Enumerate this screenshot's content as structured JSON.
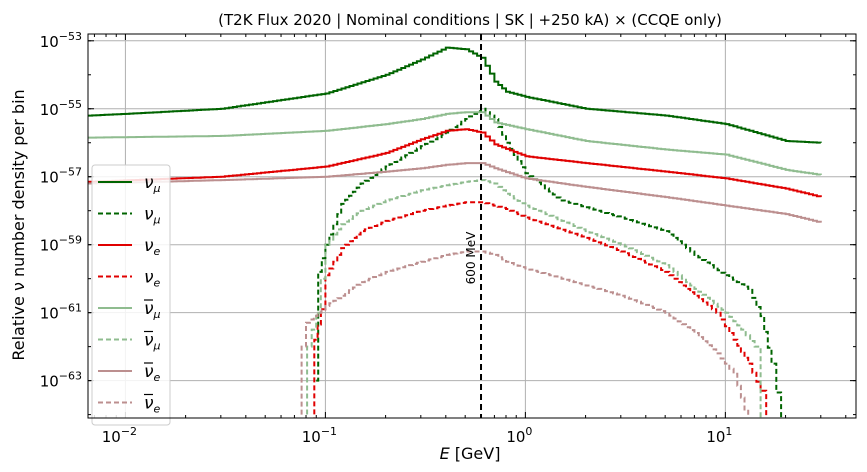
{
  "chart_data": {
    "type": "line",
    "title": "(T2K Flux 2020 | Nominal conditions | SK | +250 kA)      ×      (CCQE only)",
    "xlabel": "E [GeV]",
    "ylabel": "Relative ν number density per bin",
    "xscale": "log",
    "yscale": "log",
    "xlim": [
      0.0065,
      45
    ],
    "ylim_exp": [
      -64.1,
      -52.8
    ],
    "grid": true,
    "legend_position": "center-left",
    "x_ticks": [
      {
        "value": 0.01,
        "base": "10",
        "exp": "−2"
      },
      {
        "value": 0.1,
        "base": "10",
        "exp": "−1"
      },
      {
        "value": 1,
        "base": "10",
        "exp": "0"
      },
      {
        "value": 10,
        "base": "10",
        "exp": "1"
      }
    ],
    "y_ticks": [
      {
        "exp_value": -53,
        "base": "10",
        "exp": "−53"
      },
      {
        "exp_value": -55,
        "base": "10",
        "exp": "−55"
      },
      {
        "exp_value": -57,
        "base": "10",
        "exp": "−57"
      },
      {
        "exp_value": -59,
        "base": "10",
        "exp": "−59"
      },
      {
        "exp_value": -61,
        "base": "10",
        "exp": "−61"
      },
      {
        "exp_value": -63,
        "base": "10",
        "exp": "−63"
      }
    ],
    "annotation": {
      "text": "600 MeV",
      "x": 0.6
    },
    "series": [
      {
        "key": "numu_flux",
        "label": "ν",
        "sub": "μ",
        "bar": false,
        "color": "#006400",
        "dashed": false,
        "log10_points": [
          [
            0.0065,
            -55.2
          ],
          [
            0.01,
            -55.15
          ],
          [
            0.03,
            -55.0
          ],
          [
            0.1,
            -54.55
          ],
          [
            0.2,
            -54.0
          ],
          [
            0.3,
            -53.55
          ],
          [
            0.4,
            -53.2
          ],
          [
            0.5,
            -53.25
          ],
          [
            0.6,
            -53.5
          ],
          [
            0.7,
            -54.2
          ],
          [
            0.8,
            -54.5
          ],
          [
            1,
            -54.65
          ],
          [
            2,
            -55.0
          ],
          [
            5,
            -55.2
          ],
          [
            10,
            -55.45
          ],
          [
            20,
            -55.95
          ],
          [
            30,
            -56.0
          ]
        ]
      },
      {
        "key": "numu_ccqe",
        "label": "ν",
        "sub": "μ",
        "bar": false,
        "color": "#006400",
        "dashed": true,
        "log10_points": [
          [
            0.09,
            -63.0
          ],
          [
            0.092,
            -59.8
          ],
          [
            0.1,
            -59.0
          ],
          [
            0.12,
            -57.8
          ],
          [
            0.15,
            -57.2
          ],
          [
            0.2,
            -56.7
          ],
          [
            0.3,
            -56.1
          ],
          [
            0.4,
            -55.7
          ],
          [
            0.5,
            -55.3
          ],
          [
            0.6,
            -55.0
          ],
          [
            0.7,
            -55.3
          ],
          [
            0.8,
            -56.0
          ],
          [
            1,
            -56.9
          ],
          [
            1.5,
            -57.7
          ],
          [
            2,
            -57.9
          ],
          [
            3,
            -58.2
          ],
          [
            5,
            -58.6
          ],
          [
            7,
            -59.3
          ],
          [
            10,
            -59.9
          ],
          [
            13,
            -60.3
          ],
          [
            15,
            -61.1
          ],
          [
            17,
            -62.5
          ],
          [
            19,
            -64.2
          ]
        ]
      },
      {
        "key": "nue_flux",
        "label": "ν",
        "sub": "e",
        "bar": false,
        "color": "#e00000",
        "dashed": false,
        "log10_points": [
          [
            0.0065,
            -57.15
          ],
          [
            0.03,
            -57.0
          ],
          [
            0.1,
            -56.7
          ],
          [
            0.2,
            -56.3
          ],
          [
            0.3,
            -55.9
          ],
          [
            0.4,
            -55.65
          ],
          [
            0.5,
            -55.6
          ],
          [
            0.6,
            -55.7
          ],
          [
            0.7,
            -56.05
          ],
          [
            1,
            -56.4
          ],
          [
            2,
            -56.6
          ],
          [
            5,
            -56.85
          ],
          [
            10,
            -57.05
          ],
          [
            20,
            -57.35
          ],
          [
            30,
            -57.6
          ]
        ]
      },
      {
        "key": "nue_ccqe",
        "label": "ν",
        "sub": "e",
        "bar": false,
        "color": "#e00000",
        "dashed": true,
        "log10_points": [
          [
            0.087,
            -64.2
          ],
          [
            0.088,
            -61.8
          ],
          [
            0.095,
            -60.9
          ],
          [
            0.1,
            -59.9
          ],
          [
            0.12,
            -59.1
          ],
          [
            0.15,
            -58.6
          ],
          [
            0.2,
            -58.3
          ],
          [
            0.3,
            -58.0
          ],
          [
            0.4,
            -57.85
          ],
          [
            0.5,
            -57.75
          ],
          [
            0.6,
            -57.75
          ],
          [
            0.8,
            -57.95
          ],
          [
            1,
            -58.2
          ],
          [
            2,
            -58.8
          ],
          [
            3,
            -59.2
          ],
          [
            5,
            -59.8
          ],
          [
            7,
            -60.5
          ],
          [
            9,
            -61.0
          ],
          [
            11,
            -61.8
          ],
          [
            13,
            -62.5
          ],
          [
            15,
            -63.3
          ],
          [
            16,
            -64.2
          ]
        ]
      },
      {
        "key": "numubar_flux",
        "label": "ν",
        "sub": "μ",
        "bar": true,
        "color": "#8fbc8f",
        "dashed": false,
        "log10_points": [
          [
            0.0065,
            -55.85
          ],
          [
            0.03,
            -55.8
          ],
          [
            0.1,
            -55.65
          ],
          [
            0.2,
            -55.45
          ],
          [
            0.3,
            -55.3
          ],
          [
            0.4,
            -55.15
          ],
          [
            0.5,
            -55.1
          ],
          [
            0.6,
            -55.1
          ],
          [
            0.7,
            -55.4
          ],
          [
            1,
            -55.6
          ],
          [
            2,
            -55.95
          ],
          [
            5,
            -56.2
          ],
          [
            10,
            -56.35
          ],
          [
            20,
            -56.8
          ],
          [
            30,
            -56.95
          ]
        ]
      },
      {
        "key": "numubar_ccqe",
        "label": "ν",
        "sub": "μ",
        "bar": true,
        "color": "#8fbc8f",
        "dashed": true,
        "log10_points": [
          [
            0.08,
            -64.2
          ],
          [
            0.081,
            -62.0
          ],
          [
            0.09,
            -61.0
          ],
          [
            0.1,
            -59.0
          ],
          [
            0.12,
            -58.4
          ],
          [
            0.15,
            -58.0
          ],
          [
            0.2,
            -57.7
          ],
          [
            0.3,
            -57.4
          ],
          [
            0.4,
            -57.25
          ],
          [
            0.5,
            -57.15
          ],
          [
            0.6,
            -57.1
          ],
          [
            0.7,
            -57.2
          ],
          [
            0.8,
            -57.5
          ],
          [
            1,
            -57.85
          ],
          [
            2,
            -58.6
          ],
          [
            3,
            -59.0
          ],
          [
            5,
            -59.6
          ],
          [
            7,
            -60.3
          ],
          [
            10,
            -61.0
          ],
          [
            12,
            -61.5
          ],
          [
            14,
            -62.0
          ],
          [
            15,
            -64.2
          ]
        ]
      },
      {
        "key": "nuebar_flux",
        "label": "ν",
        "sub": "e",
        "bar": true,
        "color": "#bc8f8f",
        "dashed": false,
        "log10_points": [
          [
            0.0065,
            -57.2
          ],
          [
            0.03,
            -57.1
          ],
          [
            0.1,
            -57.0
          ],
          [
            0.2,
            -56.85
          ],
          [
            0.3,
            -56.75
          ],
          [
            0.4,
            -56.65
          ],
          [
            0.5,
            -56.6
          ],
          [
            0.6,
            -56.6
          ],
          [
            0.7,
            -56.75
          ],
          [
            1,
            -57.05
          ],
          [
            2,
            -57.3
          ],
          [
            5,
            -57.6
          ],
          [
            10,
            -57.85
          ],
          [
            20,
            -58.1
          ],
          [
            30,
            -58.35
          ]
        ]
      },
      {
        "key": "nuebar_ccqe",
        "label": "ν",
        "sub": "e",
        "bar": true,
        "color": "#bc8f8f",
        "dashed": true,
        "log10_points": [
          [
            0.075,
            -64.2
          ],
          [
            0.076,
            -62.0
          ],
          [
            0.08,
            -61.3
          ],
          [
            0.1,
            -60.8
          ],
          [
            0.12,
            -60.5
          ],
          [
            0.15,
            -60.1
          ],
          [
            0.2,
            -59.8
          ],
          [
            0.3,
            -59.5
          ],
          [
            0.4,
            -59.3
          ],
          [
            0.5,
            -59.2
          ],
          [
            0.6,
            -59.2
          ],
          [
            0.7,
            -59.3
          ],
          [
            0.8,
            -59.5
          ],
          [
            1,
            -59.7
          ],
          [
            2,
            -60.2
          ],
          [
            3,
            -60.5
          ],
          [
            5,
            -61.0
          ],
          [
            7,
            -61.6
          ],
          [
            9,
            -62.2
          ],
          [
            11,
            -62.8
          ],
          [
            13,
            -64.2
          ]
        ]
      }
    ]
  }
}
